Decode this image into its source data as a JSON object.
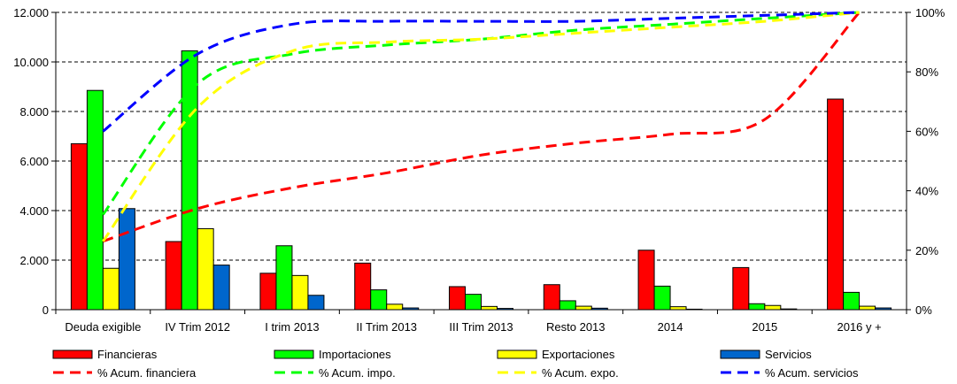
{
  "chart_data": {
    "type": "bar",
    "title": "",
    "categories": [
      "Deuda exigible",
      "IV Trim 2012",
      "I trim 2013",
      "II Trim 2013",
      "III Trim 2013",
      "Resto 2013",
      "2014",
      "2015",
      "2016 y +"
    ],
    "y_left": {
      "range": [
        0,
        12000
      ],
      "ticks": [
        "0",
        "2.000",
        "4.000",
        "6.000",
        "8.000",
        "10.000",
        "12.000"
      ]
    },
    "y_right": {
      "range": [
        0,
        100
      ],
      "ticks": [
        "0%",
        "20%",
        "40%",
        "60%",
        "80%",
        "100%"
      ]
    },
    "grid": "horizontal-dashed",
    "legend_position": "bottom",
    "bar_series": [
      {
        "name": "Financieras",
        "color": "#ff0000",
        "values": [
          6700,
          2750,
          1470,
          1880,
          930,
          1010,
          2400,
          1700,
          8500
        ]
      },
      {
        "name": "Importaciones",
        "color": "#00ff00",
        "values": [
          8850,
          10450,
          2580,
          800,
          620,
          360,
          950,
          240,
          700
        ]
      },
      {
        "name": "Exportaciones",
        "color": "#ffff00",
        "values": [
          1670,
          3270,
          1380,
          220,
          130,
          140,
          120,
          170,
          140
        ]
      },
      {
        "name": "Servicios",
        "color": "#0066cc",
        "values": [
          4080,
          1800,
          580,
          70,
          50,
          60,
          20,
          30,
          70
        ]
      }
    ],
    "line_series": [
      {
        "name": "% Acum. financiera",
        "color": "#ff0000",
        "axis": "right",
        "values": [
          23,
          34,
          41,
          46,
          52,
          56,
          59,
          64,
          100
        ]
      },
      {
        "name": "% Acum. impo.",
        "color": "#00ff00",
        "axis": "right",
        "values": [
          32,
          76,
          86,
          89,
          91,
          94,
          96,
          98,
          100
        ]
      },
      {
        "name": "% Acum. expo.",
        "color": "#ffff00",
        "axis": "right",
        "values": [
          23,
          68,
          87,
          90,
          91,
          93,
          95,
          97,
          100
        ]
      },
      {
        "name": "% Acum. servicios",
        "color": "#0000ff",
        "axis": "right",
        "values": [
          60,
          86,
          96,
          97,
          97,
          97,
          98,
          99,
          100
        ]
      }
    ]
  }
}
